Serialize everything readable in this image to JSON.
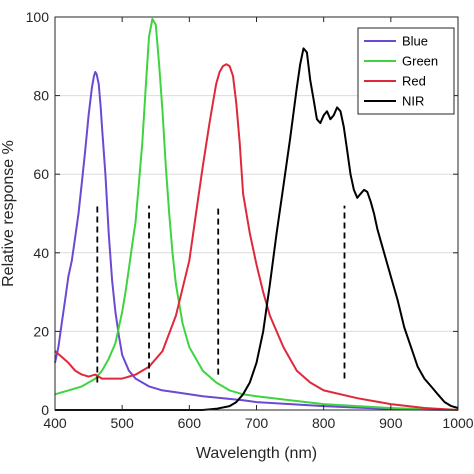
{
  "chart_data": {
    "type": "line",
    "title": "",
    "xlabel": "Wavelength (nm)",
    "ylabel": "Relative response %",
    "xlim": [
      400,
      1000
    ],
    "ylim": [
      0,
      100
    ],
    "x_ticks": [
      400,
      500,
      600,
      700,
      800,
      900,
      1000
    ],
    "y_ticks": [
      0,
      20,
      40,
      60,
      80,
      100
    ],
    "grid": "horizontal",
    "legend_position": "top-right",
    "series": [
      {
        "name": "Blue",
        "color": "#6a4ad1",
        "x": [
          400,
          405,
          410,
          415,
          420,
          425,
          430,
          435,
          440,
          445,
          450,
          455,
          458,
          460,
          462,
          465,
          468,
          470,
          475,
          480,
          485,
          490,
          495,
          500,
          510,
          520,
          530,
          540,
          550,
          560,
          580,
          600,
          620,
          650,
          680,
          700,
          750,
          800,
          850,
          900,
          950,
          1000
        ],
        "y": [
          12,
          16,
          22,
          28,
          34,
          38,
          44,
          50,
          58,
          66,
          75,
          82,
          85,
          86,
          85.5,
          83,
          77,
          72,
          60,
          45,
          33,
          25,
          19,
          14,
          10,
          8,
          7,
          6,
          5.5,
          5,
          4.5,
          4,
          3.5,
          3,
          2.5,
          2,
          1.5,
          1,
          0.6,
          0.3,
          0.1,
          0
        ]
      },
      {
        "name": "Green",
        "color": "#3fd43f",
        "x": [
          400,
          420,
          440,
          460,
          470,
          480,
          490,
          500,
          505,
          510,
          515,
          520,
          525,
          530,
          535,
          540,
          545,
          550,
          555,
          560,
          565,
          570,
          575,
          580,
          590,
          600,
          620,
          640,
          660,
          680,
          700,
          750,
          800,
          850,
          900,
          950,
          1000
        ],
        "y": [
          4,
          5,
          6,
          8,
          10,
          13,
          17,
          25,
          30,
          36,
          42,
          48,
          58,
          68,
          82,
          95,
          99.5,
          98,
          88,
          76,
          62,
          50,
          40,
          32,
          22,
          16,
          10,
          7,
          5,
          4,
          3.5,
          2.5,
          1.5,
          1,
          0.5,
          0.2,
          0
        ]
      },
      {
        "name": "Red",
        "color": "#e0283c",
        "x": [
          400,
          410,
          420,
          430,
          440,
          450,
          460,
          470,
          480,
          500,
          520,
          540,
          560,
          580,
          590,
          600,
          610,
          620,
          630,
          635,
          640,
          645,
          650,
          655,
          660,
          665,
          670,
          675,
          680,
          690,
          700,
          710,
          720,
          740,
          760,
          780,
          800,
          850,
          900,
          950,
          1000
        ],
        "y": [
          15,
          13.5,
          12,
          10,
          9,
          8.5,
          9,
          8,
          8,
          8,
          9,
          11,
          15,
          24,
          31,
          38,
          50,
          62,
          73,
          78,
          83,
          86,
          87.5,
          88,
          87.5,
          85,
          78,
          68,
          55,
          45,
          37,
          30,
          24,
          16,
          10,
          7,
          5,
          3,
          1.5,
          0.5,
          0
        ]
      },
      {
        "name": "NIR",
        "color": "#000000",
        "x": [
          400,
          600,
          620,
          640,
          660,
          670,
          680,
          690,
          700,
          710,
          720,
          730,
          740,
          750,
          760,
          765,
          770,
          775,
          780,
          785,
          790,
          795,
          800,
          805,
          810,
          815,
          820,
          825,
          830,
          835,
          840,
          845,
          850,
          855,
          860,
          865,
          870,
          875,
          880,
          890,
          900,
          910,
          920,
          930,
          940,
          950,
          960,
          970,
          980,
          990,
          1000
        ],
        "y": [
          0,
          0,
          0,
          0.3,
          1,
          2,
          4,
          7,
          12,
          20,
          32,
          45,
          57,
          69,
          82,
          88,
          92,
          91,
          84,
          79,
          74,
          73,
          75,
          76,
          74,
          75,
          77,
          76,
          72,
          66,
          60,
          56,
          54,
          55,
          56,
          55.5,
          53,
          50,
          46,
          40,
          34,
          28,
          21,
          16,
          11,
          8,
          6,
          4,
          2,
          1,
          0.5
        ]
      }
    ],
    "dashed_markers": [
      {
        "x": 463,
        "y_from": 7,
        "y_to": 52
      },
      {
        "x": 540,
        "y_from": 8,
        "y_to": 52
      },
      {
        "x": 643,
        "y_from": 9,
        "y_to": 52
      },
      {
        "x": 831,
        "y_from": 8,
        "y_to": 52
      }
    ]
  }
}
